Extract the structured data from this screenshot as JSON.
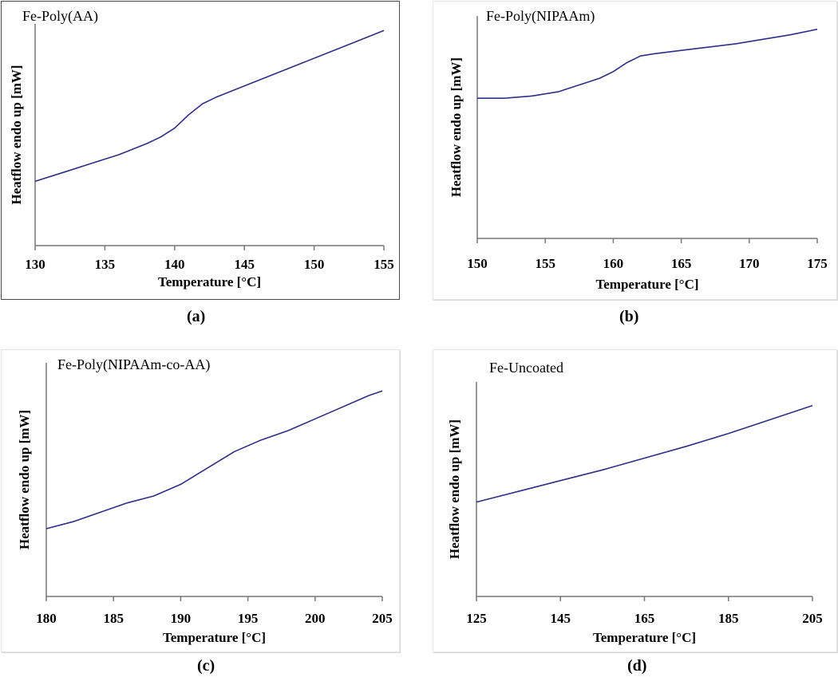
{
  "chart_data": [
    {
      "id": "a",
      "type": "line",
      "title": "Fe-Poly(AA)",
      "xlabel": "Temperature [°C]",
      "ylabel": "Heatflow endo up [mW]",
      "caption": "(a)",
      "xlim": [
        130,
        155
      ],
      "ylim": [
        0,
        100
      ],
      "xticks": [
        130,
        135,
        140,
        145,
        150,
        155
      ],
      "color": "#2e2e8a",
      "series": [
        {
          "name": "Fe-Poly(AA)",
          "x": [
            130,
            132,
            134,
            136,
            138,
            139,
            140,
            141,
            142,
            143,
            145,
            147,
            149,
            151,
            153,
            155
          ],
          "y": [
            29,
            33,
            37,
            41,
            46,
            49,
            53,
            59,
            64,
            67,
            72,
            77,
            82,
            87,
            92,
            97
          ]
        }
      ]
    },
    {
      "id": "b",
      "type": "line",
      "title": "Fe-Poly(NIPAAm)",
      "xlabel": "Temperature [°C]",
      "ylabel": "Heatflow endo up [mW]",
      "caption": "(b)",
      "xlim": [
        150,
        175
      ],
      "ylim": [
        0,
        100
      ],
      "xticks": [
        150,
        155,
        160,
        165,
        170,
        175
      ],
      "color": "#2e2e8a",
      "series": [
        {
          "name": "Fe-Poly(NIPAAm)",
          "x": [
            150,
            152,
            154,
            155,
            156,
            157,
            158,
            159,
            160,
            161,
            162,
            163,
            165,
            167,
            169,
            171,
            173,
            175
          ],
          "y": [
            63,
            63,
            64,
            65,
            66,
            68,
            70,
            72,
            75,
            79,
            82,
            83,
            84.5,
            86,
            87.5,
            89.5,
            91.5,
            94
          ]
        }
      ]
    },
    {
      "id": "c",
      "type": "line",
      "title": "Fe-Poly(NIPAAm-co-AA)",
      "xlabel": "Temperature [°C]",
      "ylabel": "Heatflow endo up [mW]",
      "caption": "(c)",
      "xlim": [
        180,
        205
      ],
      "ylim": [
        0,
        100
      ],
      "xticks": [
        180,
        185,
        190,
        195,
        200,
        205
      ],
      "color": "#2e2e8a",
      "series": [
        {
          "name": "Fe-Poly(NIPAAm-co-AA)",
          "x": [
            180,
            182,
            184,
            186,
            188,
            190,
            192,
            194,
            196,
            198,
            200,
            202,
            204,
            205
          ],
          "y": [
            29,
            32,
            36,
            40,
            43,
            48,
            55,
            62,
            67,
            71,
            76,
            81,
            86,
            88
          ]
        }
      ]
    },
    {
      "id": "d",
      "type": "line",
      "title": "Fe-Uncoated",
      "xlabel": "Temperature [°C]",
      "ylabel": "Heatflow endo up [mW]",
      "caption": "(d)",
      "xlim": [
        125,
        205
      ],
      "ylim": [
        0,
        100
      ],
      "xticks": [
        125,
        145,
        165,
        185,
        205
      ],
      "color": "#2e2e8a",
      "series": [
        {
          "name": "Fe-Uncoated",
          "x": [
            125,
            135,
            145,
            155,
            165,
            175,
            185,
            195,
            205
          ],
          "y": [
            44,
            49,
            54,
            59,
            64.5,
            70,
            76,
            82.5,
            89
          ]
        }
      ]
    }
  ]
}
